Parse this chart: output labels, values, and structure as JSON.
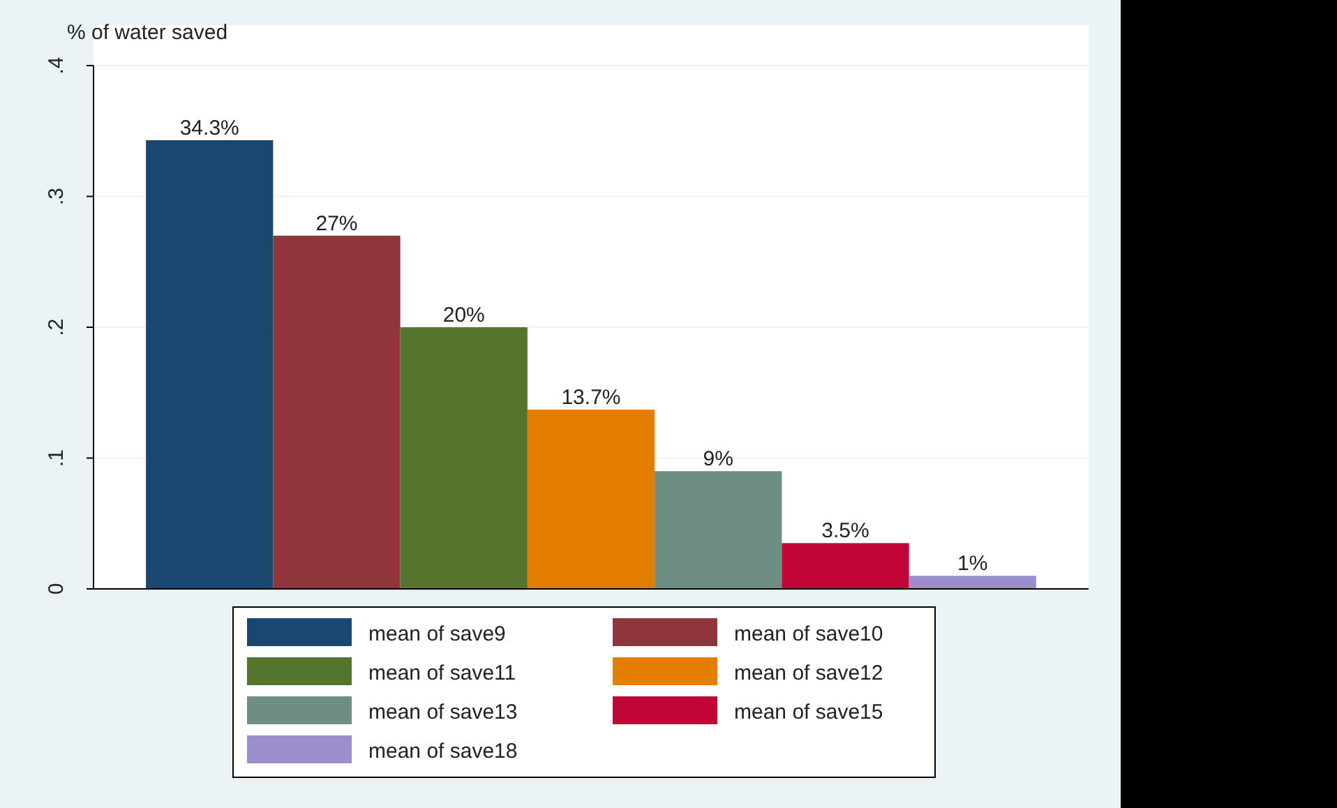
{
  "chart_data": {
    "type": "bar",
    "ylabel": "% of water saved",
    "categories": [
      null
    ],
    "ylim": [
      0,
      0.4
    ],
    "yticks": [
      {
        "value": 0,
        "label": "0"
      },
      {
        "value": 0.1,
        "label": ".1"
      },
      {
        "value": 0.2,
        "label": ".2"
      },
      {
        "value": 0.3,
        "label": ".3"
      },
      {
        "value": 0.4,
        "label": ".4"
      }
    ],
    "grid": "y",
    "legend": "bottom",
    "series": [
      {
        "name": "mean of save9",
        "color": "#1a476f",
        "values": [
          0.343
        ],
        "value_labels": [
          "34.3%"
        ]
      },
      {
        "name": "mean of save10",
        "color": "#90353b",
        "values": [
          0.27
        ],
        "value_labels": [
          "27%"
        ]
      },
      {
        "name": "mean of save11",
        "color": "#55752f",
        "values": [
          0.2
        ],
        "value_labels": [
          "20%"
        ]
      },
      {
        "name": "mean of save12",
        "color": "#e37e00",
        "values": [
          0.137
        ],
        "value_labels": [
          "13.7%"
        ]
      },
      {
        "name": "mean of save13",
        "color": "#6e8e84",
        "values": [
          0.09
        ],
        "value_labels": [
          "9%"
        ]
      },
      {
        "name": "mean of save15",
        "color": "#c10534",
        "values": [
          0.035
        ],
        "value_labels": [
          "3.5%"
        ]
      },
      {
        "name": "mean of save18",
        "color": "#9c8dcd",
        "values": [
          0.01
        ],
        "value_labels": [
          "1%"
        ]
      }
    ]
  }
}
